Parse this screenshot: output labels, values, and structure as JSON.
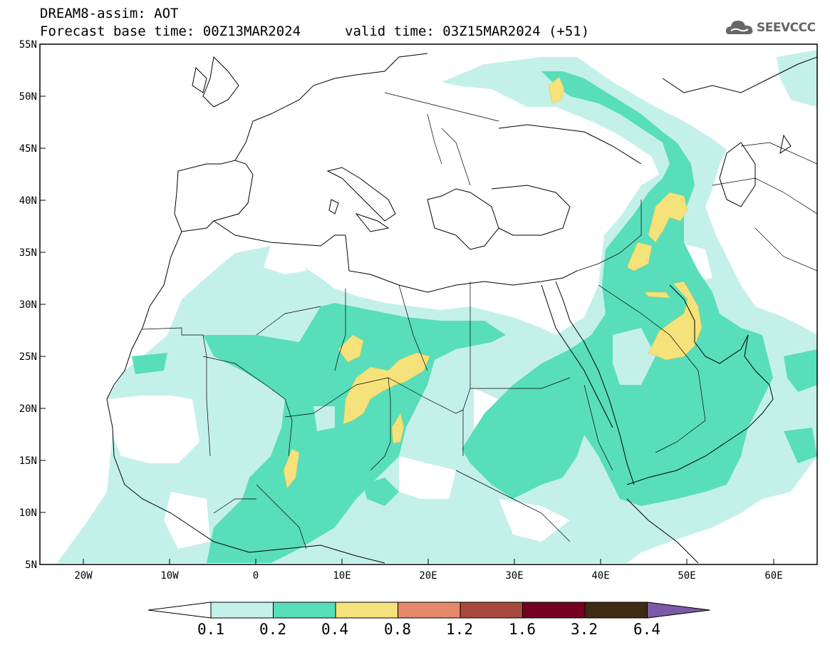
{
  "header": {
    "model_title": "DREAM8-assim: AOT",
    "base_time": "Forecast base time: 00Z13MAR2024",
    "valid_time": "valid time: 03Z15MAR2024 (+51)"
  },
  "logo": {
    "text": "SEEVCCC",
    "icon": "cloud-icon"
  },
  "map": {
    "lon_range": [
      -25,
      65
    ],
    "lat_range": [
      5,
      55
    ],
    "lat_labels": [
      "55N",
      "50N",
      "45N",
      "40N",
      "35N",
      "30N",
      "25N",
      "20N",
      "15N",
      "10N",
      "5N"
    ],
    "lon_labels": [
      "20W",
      "10W",
      "0",
      "10E",
      "20E",
      "30E",
      "40E",
      "50E",
      "60E"
    ],
    "shading_classes": [
      "0.1-0.2",
      "0.2-0.4",
      "0.4-0.8"
    ]
  },
  "colorbar": {
    "labels": [
      "0.1",
      "0.2",
      "0.4",
      "0.8",
      "1.2",
      "1.6",
      "3.2",
      "6.4"
    ],
    "colors": [
      "#ffffff",
      "#c4f0ea",
      "#58deba",
      "#f5e27a",
      "#e6886a",
      "#a94a3c",
      "#760022",
      "#3f2a13",
      "#7c5aa6"
    ]
  }
}
